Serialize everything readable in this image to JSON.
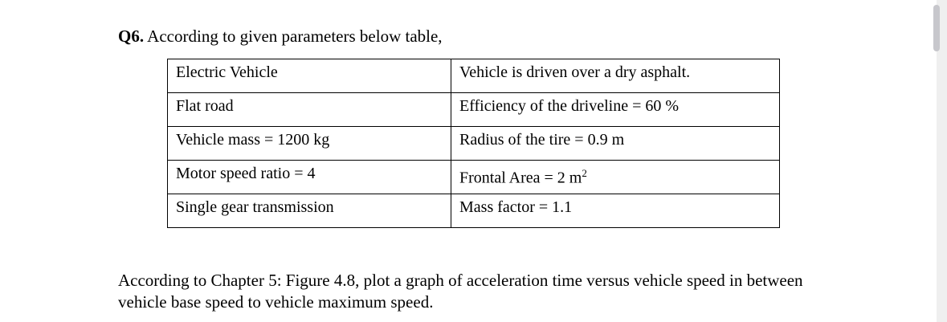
{
  "question": {
    "number": "Q6.",
    "text": " According to given parameters below table,"
  },
  "table": {
    "rows": [
      {
        "left": "Electric Vehicle",
        "right": "Vehicle is driven over a dry asphalt."
      },
      {
        "left": "Flat road",
        "right": "Efficiency of the driveline = 60 %"
      },
      {
        "left": "Vehicle mass = 1200 kg",
        "right": "Radius of the tire = 0.9 m"
      },
      {
        "left": "Motor speed ratio = 4",
        "right": "Frontal Area = 2 m",
        "right_sup": "2"
      },
      {
        "left": "Single gear transmission",
        "right": "Mass factor = 1.1"
      }
    ]
  },
  "instruction": {
    "line1": "According to Chapter 5: Figure 4.8, plot a graph of acceleration time versus vehicle speed in between",
    "line2": "vehicle base speed to vehicle maximum speed."
  }
}
